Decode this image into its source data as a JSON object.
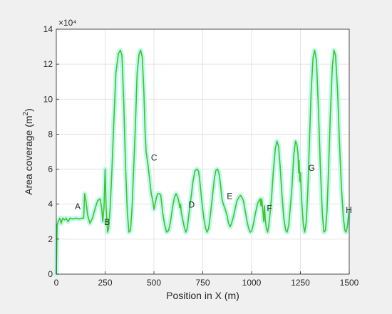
{
  "chart_data": {
    "type": "line",
    "xlabel": "Position in X (m)",
    "ylabel": "Area coverage (m²)",
    "ylabel_base": "Area coverage (m",
    "ylabel_sup": "2",
    "ylabel_tail": ")",
    "y_exponent": "×10⁴",
    "xlim": [
      0,
      1500
    ],
    "ylim": [
      0,
      14
    ],
    "y_units_multiplier": 10000,
    "xticks": [
      0,
      250,
      500,
      750,
      1000,
      1250,
      1500
    ],
    "yticks": [
      0,
      2,
      4,
      6,
      8,
      10,
      12,
      14
    ],
    "grid": true,
    "line_color": "#3cc81e",
    "glow_color": "#bff5f0",
    "series": [
      {
        "points": [
          [
            0,
            0
          ],
          [
            4,
            2.8
          ],
          [
            10,
            3.0
          ],
          [
            18,
            3.2
          ],
          [
            25,
            2.9
          ],
          [
            33,
            3.2
          ],
          [
            42,
            3.1
          ],
          [
            50,
            3.2
          ],
          [
            60,
            3.0
          ],
          [
            70,
            3.2
          ],
          [
            85,
            3.15
          ],
          [
            100,
            3.2
          ],
          [
            115,
            3.15
          ],
          [
            130,
            3.2
          ],
          [
            140,
            3.2
          ],
          [
            145,
            4.6
          ],
          [
            152,
            4.2
          ],
          [
            160,
            3.4
          ],
          [
            172,
            2.9
          ],
          [
            185,
            3.2
          ],
          [
            200,
            3.8
          ],
          [
            212,
            4.2
          ],
          [
            224,
            4.3
          ],
          [
            232,
            3.8
          ],
          [
            238,
            3.0
          ],
          [
            244,
            3.8
          ],
          [
            250,
            6.0
          ],
          [
            255,
            3.8
          ],
          [
            262,
            2.4
          ],
          [
            268,
            2.6
          ],
          [
            276,
            3.8
          ],
          [
            285,
            6.0
          ],
          [
            295,
            8.8
          ],
          [
            305,
            11.5
          ],
          [
            318,
            12.6
          ],
          [
            328,
            12.8
          ],
          [
            336,
            12.5
          ],
          [
            345,
            10.0
          ],
          [
            355,
            6.0
          ],
          [
            364,
            3.5
          ],
          [
            372,
            2.4
          ],
          [
            380,
            2.5
          ],
          [
            388,
            3.8
          ],
          [
            396,
            6.0
          ],
          [
            405,
            8.5
          ],
          [
            414,
            11.5
          ],
          [
            424,
            12.6
          ],
          [
            432,
            12.8
          ],
          [
            440,
            12.4
          ],
          [
            448,
            10.5
          ],
          [
            455,
            8.0
          ],
          [
            460,
            7.0
          ],
          [
            470,
            6.2
          ],
          [
            478,
            5.4
          ],
          [
            486,
            4.6
          ],
          [
            494,
            4.2
          ],
          [
            500,
            3.7
          ],
          [
            506,
            4.0
          ],
          [
            513,
            4.4
          ],
          [
            520,
            4.6
          ],
          [
            528,
            4.6
          ],
          [
            535,
            4.5
          ],
          [
            545,
            3.5
          ],
          [
            555,
            2.8
          ],
          [
            565,
            2.4
          ],
          [
            575,
            2.5
          ],
          [
            585,
            3.0
          ],
          [
            595,
            3.8
          ],
          [
            605,
            4.4
          ],
          [
            613,
            4.6
          ],
          [
            622,
            4.4
          ],
          [
            628,
            4.1
          ],
          [
            632,
            3.8
          ],
          [
            636,
            4.0
          ],
          [
            640,
            3.5
          ],
          [
            646,
            3.2
          ],
          [
            655,
            2.7
          ],
          [
            663,
            2.4
          ],
          [
            670,
            2.6
          ],
          [
            680,
            3.5
          ],
          [
            690,
            4.4
          ],
          [
            700,
            5.3
          ],
          [
            710,
            5.9
          ],
          [
            720,
            6.0
          ],
          [
            728,
            5.9
          ],
          [
            735,
            5.3
          ],
          [
            745,
            4.2
          ],
          [
            755,
            3.2
          ],
          [
            765,
            2.6
          ],
          [
            772,
            2.4
          ],
          [
            780,
            2.6
          ],
          [
            790,
            3.5
          ],
          [
            800,
            4.5
          ],
          [
            810,
            5.5
          ],
          [
            818,
            5.95
          ],
          [
            826,
            6.0
          ],
          [
            832,
            5.8
          ],
          [
            840,
            5.2
          ],
          [
            848,
            4.3
          ],
          [
            855,
            4.0
          ],
          [
            862,
            3.8
          ],
          [
            868,
            3.6
          ],
          [
            875,
            3.3
          ],
          [
            882,
            2.9
          ],
          [
            890,
            2.7
          ],
          [
            897,
            2.9
          ],
          [
            905,
            3.2
          ],
          [
            915,
            3.7
          ],
          [
            925,
            4.2
          ],
          [
            935,
            4.4
          ],
          [
            943,
            4.5
          ],
          [
            950,
            4.4
          ],
          [
            958,
            4.2
          ],
          [
            966,
            3.7
          ],
          [
            975,
            3.1
          ],
          [
            985,
            2.6
          ],
          [
            993,
            2.4
          ],
          [
            1002,
            2.5
          ],
          [
            1010,
            2.9
          ],
          [
            1020,
            3.5
          ],
          [
            1030,
            4.0
          ],
          [
            1038,
            4.2
          ],
          [
            1044,
            4.3
          ],
          [
            1048,
            3.9
          ],
          [
            1052,
            4.3
          ],
          [
            1058,
            3.6
          ],
          [
            1062,
            3.0
          ],
          [
            1066,
            3.9
          ],
          [
            1070,
            3.1
          ],
          [
            1076,
            2.6
          ],
          [
            1082,
            2.4
          ],
          [
            1088,
            2.8
          ],
          [
            1095,
            3.5
          ],
          [
            1103,
            4.5
          ],
          [
            1112,
            6.0
          ],
          [
            1122,
            7.2
          ],
          [
            1130,
            7.6
          ],
          [
            1138,
            7.3
          ],
          [
            1146,
            6.2
          ],
          [
            1155,
            4.6
          ],
          [
            1165,
            3.2
          ],
          [
            1175,
            2.5
          ],
          [
            1182,
            2.4
          ],
          [
            1190,
            2.8
          ],
          [
            1198,
            3.8
          ],
          [
            1207,
            5.0
          ],
          [
            1216,
            6.8
          ],
          [
            1225,
            7.6
          ],
          [
            1232,
            7.4
          ],
          [
            1238,
            6.8
          ],
          [
            1241,
            5.8
          ],
          [
            1243,
            6.5
          ],
          [
            1247,
            5.3
          ],
          [
            1250,
            5.8
          ],
          [
            1256,
            4.3
          ],
          [
            1265,
            2.8
          ],
          [
            1272,
            2.4
          ],
          [
            1280,
            3.0
          ],
          [
            1288,
            4.8
          ],
          [
            1296,
            7.5
          ],
          [
            1305,
            10.5
          ],
          [
            1315,
            12.4
          ],
          [
            1323,
            12.8
          ],
          [
            1332,
            12.2
          ],
          [
            1342,
            9.5
          ],
          [
            1352,
            6.2
          ],
          [
            1362,
            3.5
          ],
          [
            1370,
            2.4
          ],
          [
            1378,
            2.5
          ],
          [
            1386,
            3.6
          ],
          [
            1394,
            6.0
          ],
          [
            1403,
            9.0
          ],
          [
            1413,
            11.8
          ],
          [
            1422,
            12.8
          ],
          [
            1430,
            12.5
          ],
          [
            1440,
            10.5
          ],
          [
            1450,
            7.5
          ],
          [
            1460,
            5.0
          ],
          [
            1470,
            3.2
          ],
          [
            1478,
            2.5
          ],
          [
            1484,
            2.4
          ],
          [
            1490,
            2.7
          ],
          [
            1495,
            3.2
          ],
          [
            1500,
            3.6
          ]
        ]
      }
    ],
    "annotations": [
      {
        "text": "A",
        "x": 95,
        "y": 3.7
      },
      {
        "text": "B",
        "x": 245,
        "y": 2.8
      },
      {
        "text": "C",
        "x": 485,
        "y": 6.5
      },
      {
        "text": "D",
        "x": 677,
        "y": 3.8
      },
      {
        "text": "E",
        "x": 873,
        "y": 4.3
      },
      {
        "text": "F",
        "x": 1078,
        "y": 3.6
      },
      {
        "text": "G",
        "x": 1290,
        "y": 5.9
      },
      {
        "text": "H",
        "x": 1482,
        "y": 3.5
      }
    ]
  }
}
